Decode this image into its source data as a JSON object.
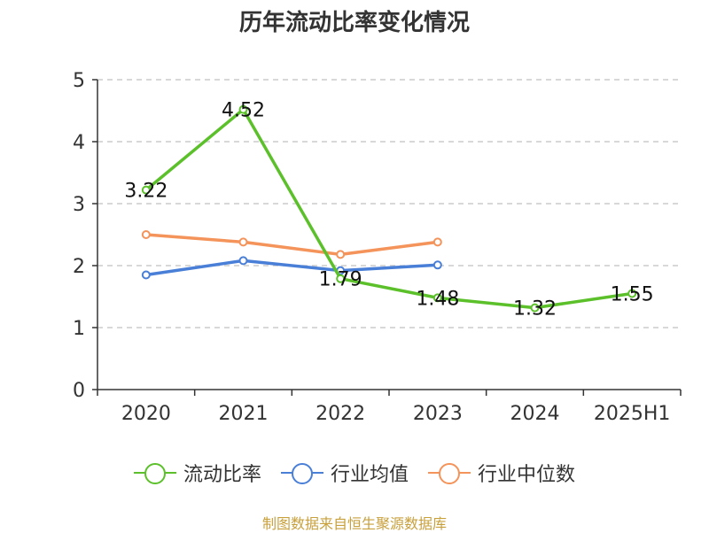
{
  "source_note": "制图数据来自恒生聚源数据库",
  "chart_data": {
    "type": "line",
    "title": "历年流动比率变化情况",
    "categories": [
      "2020",
      "2021",
      "2022",
      "2023",
      "2024",
      "2025H1"
    ],
    "ylim": [
      0,
      5
    ],
    "yticks": [
      0,
      1,
      2,
      3,
      4,
      5
    ],
    "grid": true,
    "legend_position": "bottom",
    "series": [
      {
        "name": "流动比率",
        "color": "#5bc02a",
        "values": [
          3.22,
          4.52,
          1.79,
          1.48,
          1.32,
          1.55
        ],
        "labels": [
          "3.22",
          "4.52",
          "1.79",
          "1.48",
          "1.32",
          "1.55"
        ]
      },
      {
        "name": "行业均值",
        "color": "#4a7fd8",
        "values": [
          1.85,
          2.08,
          1.92,
          2.01,
          null,
          null
        ]
      },
      {
        "name": "行业中位数",
        "color": "#f4935a",
        "values": [
          2.5,
          2.38,
          2.18,
          2.38,
          null,
          null
        ]
      }
    ]
  }
}
